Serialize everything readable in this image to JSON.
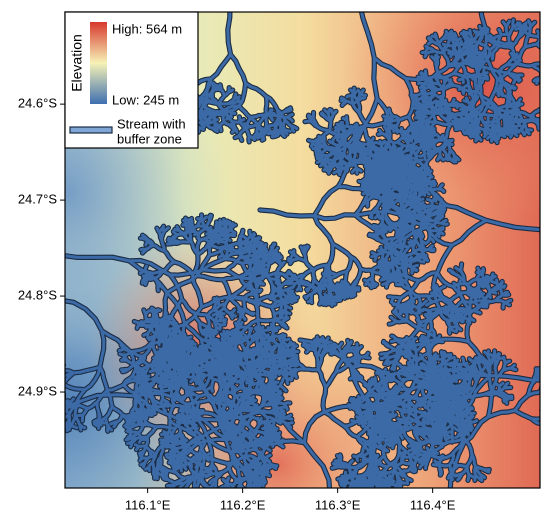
{
  "map": {
    "xlim": [
      116.013,
      116.513
    ],
    "ylim": [
      24.504,
      25.0
    ],
    "xticks": [
      {
        "value": 116.1,
        "label": "116.1°E"
      },
      {
        "value": 116.2,
        "label": "116.2°E"
      },
      {
        "value": 116.3,
        "label": "116.3°E"
      },
      {
        "value": 116.4,
        "label": "116.4°E"
      }
    ],
    "yticks": [
      {
        "value": 24.6,
        "label": "24.6°S"
      },
      {
        "value": 24.7,
        "label": "24.7°S"
      },
      {
        "value": 24.8,
        "label": "24.8°S"
      },
      {
        "value": 24.9,
        "label": "24.9°S"
      }
    ]
  },
  "legend": {
    "elevation_title": "Elevation",
    "high": "High: 564 m",
    "low": "Low: 245 m",
    "stream": [
      "Stream with",
      "buffer zone"
    ]
  }
}
